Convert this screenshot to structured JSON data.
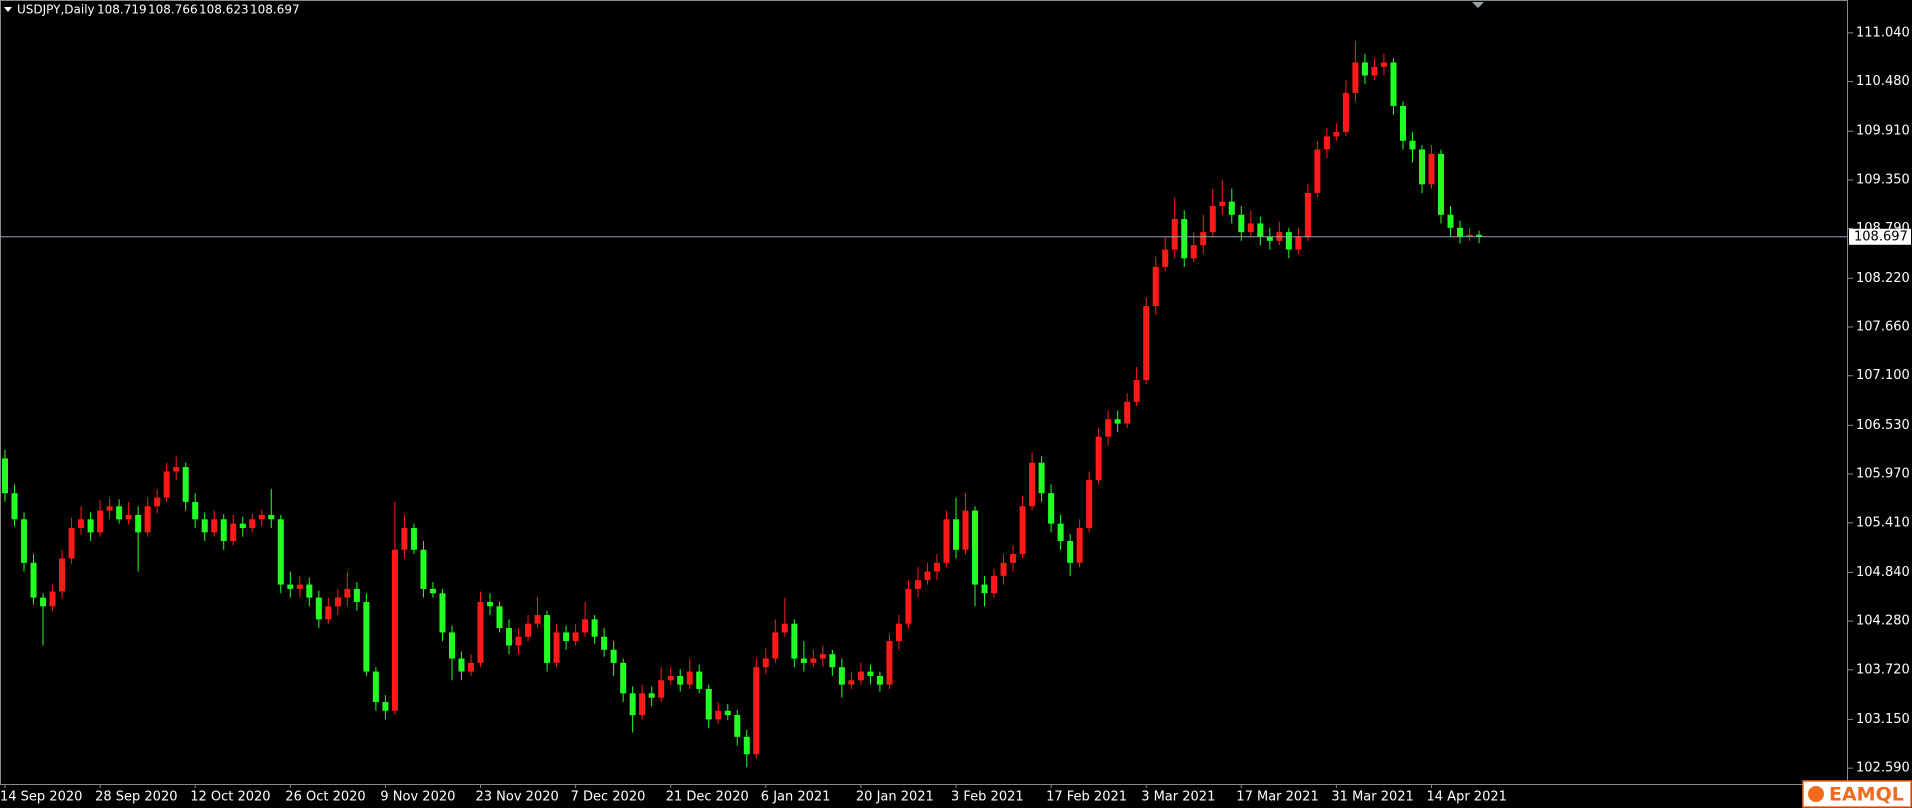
{
  "chart_data": {
    "type": "candlestick",
    "symbol": "USDJPY,Daily",
    "up_color": "#ff1a1a",
    "down_color": "#22ff22",
    "watermark": "EAMQL",
    "ylim": [
      102.408,
      111.418
    ],
    "yticks": [
      {
        "value": 111.04,
        "label": "111.040"
      },
      {
        "value": 110.48,
        "label": "110.480"
      },
      {
        "value": 109.91,
        "label": "109.910"
      },
      {
        "value": 109.35,
        "label": "109.350"
      },
      {
        "value": 108.79,
        "label": "108.790"
      },
      {
        "value": 108.22,
        "label": "108.220"
      },
      {
        "value": 107.66,
        "label": "107.660"
      },
      {
        "value": 107.1,
        "label": "107.100"
      },
      {
        "value": 106.53,
        "label": "106.530"
      },
      {
        "value": 105.97,
        "label": "105.970"
      },
      {
        "value": 105.41,
        "label": "105.410"
      },
      {
        "value": 104.84,
        "label": "104.840"
      },
      {
        "value": 104.28,
        "label": "104.280"
      },
      {
        "value": 103.72,
        "label": "103.720"
      },
      {
        "value": 103.15,
        "label": "103.150"
      },
      {
        "value": 102.59,
        "label": "102.590"
      }
    ],
    "categories": [
      "14 Sep 2020",
      null,
      null,
      null,
      null,
      null,
      null,
      null,
      null,
      null,
      "28 Sep 2020",
      null,
      null,
      null,
      null,
      null,
      null,
      null,
      null,
      null,
      "12 Oct 2020",
      null,
      null,
      null,
      null,
      null,
      null,
      null,
      null,
      null,
      "26 Oct 2020",
      null,
      null,
      null,
      null,
      null,
      null,
      null,
      null,
      null,
      "9 Nov 2020",
      null,
      null,
      null,
      null,
      null,
      null,
      null,
      null,
      null,
      "23 Nov 2020",
      null,
      null,
      null,
      null,
      null,
      null,
      null,
      null,
      null,
      "7 Dec 2020",
      null,
      null,
      null,
      null,
      null,
      null,
      null,
      null,
      null,
      "21 Dec 2020",
      null,
      null,
      null,
      null,
      null,
      null,
      null,
      null,
      null,
      "6 Jan 2021",
      null,
      null,
      null,
      null,
      null,
      null,
      null,
      null,
      null,
      "20 Jan 2021",
      null,
      null,
      null,
      null,
      null,
      null,
      null,
      null,
      null,
      "3 Feb 2021",
      null,
      null,
      null,
      null,
      null,
      null,
      null,
      null,
      null,
      "17 Feb 2021",
      null,
      null,
      null,
      null,
      null,
      null,
      null,
      null,
      null,
      "3 Mar 2021",
      null,
      null,
      null,
      null,
      null,
      null,
      null,
      null,
      null,
      "17 Mar 2021",
      null,
      null,
      null,
      null,
      null,
      null,
      null,
      null,
      null,
      "31 Mar 2021",
      null,
      null,
      null,
      null,
      null,
      null,
      null,
      null,
      null,
      "14 Apr 2021",
      null,
      null,
      null,
      null,
      null
    ],
    "open": [
      106.15,
      105.75,
      105.45,
      104.95,
      104.55,
      104.45,
      104.62,
      105.0,
      105.35,
      105.45,
      105.3,
      105.55,
      105.6,
      105.45,
      105.5,
      105.3,
      105.6,
      105.7,
      106.0,
      106.05,
      105.65,
      105.45,
      105.3,
      105.45,
      105.2,
      105.4,
      105.35,
      105.45,
      105.5,
      105.45,
      104.7,
      104.65,
      104.7,
      104.55,
      104.3,
      104.45,
      104.55,
      104.65,
      104.5,
      103.7,
      103.35,
      103.25,
      105.1,
      105.35,
      105.1,
      104.65,
      104.6,
      104.15,
      103.85,
      103.7,
      103.8,
      104.5,
      104.45,
      104.2,
      104.0,
      104.1,
      104.25,
      104.35,
      103.8,
      104.15,
      104.05,
      104.15,
      104.3,
      104.1,
      103.95,
      103.8,
      103.45,
      103.2,
      103.45,
      103.4,
      103.6,
      103.65,
      103.55,
      103.7,
      103.5,
      103.15,
      103.25,
      103.2,
      102.95,
      102.75,
      103.75,
      103.85,
      104.15,
      104.25,
      103.85,
      103.8,
      103.85,
      103.9,
      103.75,
      103.55,
      103.6,
      103.7,
      103.65,
      103.55,
      104.05,
      104.25,
      104.65,
      104.75,
      104.85,
      104.95,
      105.45,
      105.1,
      105.55,
      104.7,
      104.6,
      104.8,
      104.95,
      105.05,
      105.6,
      106.1,
      105.75,
      105.4,
      105.2,
      104.95,
      105.35,
      105.9,
      106.4,
      106.6,
      106.55,
      106.8,
      107.05,
      107.9,
      108.35,
      108.55,
      108.9,
      108.45,
      108.6,
      108.75,
      109.05,
      109.1,
      108.95,
      108.75,
      108.85,
      108.7,
      108.65,
      108.75,
      108.55,
      108.7,
      109.2,
      109.7,
      109.85,
      109.9,
      110.35,
      110.7,
      110.55,
      110.65,
      110.7,
      110.2,
      109.8,
      109.7,
      109.3,
      109.65,
      108.95,
      108.8,
      108.7,
      108.719
    ],
    "high": [
      106.25,
      105.85,
      105.53,
      105.05,
      104.6,
      104.7,
      105.1,
      105.47,
      105.6,
      105.53,
      105.67,
      105.7,
      105.68,
      105.65,
      105.6,
      105.7,
      105.8,
      106.1,
      106.17,
      106.1,
      105.75,
      105.53,
      105.55,
      105.51,
      105.5,
      105.48,
      105.51,
      105.56,
      105.8,
      105.5,
      104.85,
      104.8,
      104.78,
      104.63,
      104.55,
      104.65,
      104.85,
      104.73,
      104.6,
      103.75,
      103.43,
      105.65,
      105.5,
      105.4,
      105.2,
      104.73,
      104.65,
      104.23,
      103.93,
      103.9,
      104.62,
      104.6,
      104.5,
      104.3,
      104.2,
      104.35,
      104.55,
      104.4,
      104.25,
      104.23,
      104.25,
      104.5,
      104.35,
      104.2,
      104.05,
      103.85,
      103.53,
      103.55,
      103.53,
      103.75,
      103.75,
      103.73,
      103.85,
      103.78,
      103.55,
      103.35,
      103.33,
      103.26,
      103.03,
      103.85,
      103.97,
      104.3,
      104.55,
      104.3,
      104.05,
      103.95,
      104.0,
      103.95,
      103.85,
      103.7,
      103.8,
      103.78,
      103.7,
      104.13,
      104.35,
      104.75,
      104.9,
      104.95,
      105.05,
      105.55,
      105.7,
      105.75,
      105.6,
      104.8,
      104.88,
      105.05,
      105.15,
      105.72,
      106.22,
      106.18,
      105.85,
      105.5,
      105.28,
      105.45,
      106.0,
      106.5,
      106.7,
      106.7,
      106.9,
      107.2,
      108.0,
      108.47,
      108.7,
      109.15,
      109.0,
      108.75,
      108.95,
      109.25,
      109.35,
      109.25,
      109.05,
      109.0,
      108.93,
      108.8,
      108.87,
      108.8,
      108.8,
      109.3,
      109.8,
      109.95,
      110.0,
      110.5,
      110.95,
      110.8,
      110.75,
      110.8,
      110.75,
      110.25,
      109.9,
      109.75,
      109.75,
      109.7,
      109.05,
      108.88,
      108.8,
      108.766
    ],
    "low": [
      105.65,
      105.37,
      104.85,
      104.47,
      104.0,
      104.4,
      104.54,
      104.94,
      105.27,
      105.2,
      105.25,
      105.45,
      105.4,
      105.39,
      104.85,
      105.25,
      105.52,
      105.65,
      105.9,
      105.55,
      105.35,
      105.2,
      105.25,
      105.1,
      105.15,
      105.25,
      105.3,
      105.37,
      105.35,
      104.6,
      104.55,
      104.55,
      104.45,
      104.2,
      104.25,
      104.35,
      104.45,
      104.4,
      103.65,
      103.25,
      103.15,
      103.2,
      105.0,
      105.05,
      104.55,
      104.55,
      104.05,
      103.6,
      103.6,
      103.65,
      103.75,
      104.35,
      104.15,
      103.9,
      103.9,
      104.05,
      104.2,
      103.7,
      103.75,
      103.95,
      104.0,
      104.1,
      104.02,
      103.87,
      103.65,
      103.35,
      103.0,
      103.15,
      103.3,
      103.35,
      103.55,
      103.47,
      103.5,
      103.45,
      103.05,
      103.1,
      103.14,
      102.85,
      102.6,
      102.7,
      103.67,
      103.8,
      104.1,
      103.75,
      103.7,
      103.75,
      103.75,
      103.65,
      103.4,
      103.5,
      103.55,
      103.55,
      103.47,
      103.5,
      103.95,
      104.2,
      104.55,
      104.7,
      104.75,
      104.9,
      105.0,
      105.05,
      104.45,
      104.45,
      104.55,
      104.7,
      104.85,
      105.0,
      105.55,
      105.65,
      105.3,
      105.1,
      104.8,
      104.9,
      105.3,
      105.85,
      106.3,
      106.45,
      106.5,
      106.75,
      107.0,
      107.8,
      108.3,
      108.45,
      108.35,
      108.4,
      108.5,
      108.7,
      108.95,
      108.85,
      108.65,
      108.7,
      108.6,
      108.55,
      108.6,
      108.45,
      108.5,
      108.65,
      109.15,
      109.6,
      109.8,
      109.85,
      110.25,
      110.45,
      110.5,
      110.55,
      110.1,
      109.7,
      109.55,
      109.2,
      109.25,
      108.85,
      108.7,
      108.62,
      108.65,
      108.623
    ],
    "close": [
      105.75,
      105.45,
      104.95,
      104.55,
      104.45,
      104.62,
      105.0,
      105.35,
      105.45,
      105.3,
      105.55,
      105.6,
      105.45,
      105.5,
      105.3,
      105.6,
      105.7,
      106.0,
      106.05,
      105.65,
      105.45,
      105.3,
      105.45,
      105.2,
      105.4,
      105.35,
      105.45,
      105.5,
      105.45,
      104.7,
      104.65,
      104.7,
      104.55,
      104.3,
      104.45,
      104.55,
      104.65,
      104.5,
      103.7,
      103.35,
      103.25,
      105.1,
      105.35,
      105.1,
      104.65,
      104.6,
      104.15,
      103.85,
      103.7,
      103.8,
      104.5,
      104.45,
      104.2,
      104.0,
      104.1,
      104.25,
      104.35,
      103.8,
      104.15,
      104.05,
      104.15,
      104.3,
      104.1,
      103.95,
      103.8,
      103.45,
      103.2,
      103.45,
      103.4,
      103.6,
      103.65,
      103.55,
      103.7,
      103.5,
      103.15,
      103.25,
      103.2,
      102.95,
      102.75,
      103.75,
      103.85,
      104.15,
      104.25,
      103.85,
      103.8,
      103.85,
      103.9,
      103.75,
      103.55,
      103.6,
      103.7,
      103.65,
      103.55,
      104.05,
      104.25,
      104.65,
      104.75,
      104.85,
      104.95,
      105.45,
      105.1,
      105.55,
      104.7,
      104.6,
      104.8,
      104.95,
      105.05,
      105.6,
      106.1,
      105.75,
      105.4,
      105.2,
      104.95,
      105.35,
      105.9,
      106.4,
      106.6,
      106.55,
      106.8,
      107.05,
      107.9,
      108.35,
      108.55,
      108.9,
      108.45,
      108.6,
      108.75,
      109.05,
      109.1,
      108.95,
      108.75,
      108.85,
      108.7,
      108.65,
      108.75,
      108.55,
      108.7,
      109.2,
      109.7,
      109.85,
      109.9,
      110.35,
      110.7,
      110.55,
      110.65,
      110.7,
      110.2,
      109.8,
      109.7,
      109.3,
      109.65,
      108.95,
      108.8,
      108.7,
      108.72,
      108.697
    ]
  }
}
